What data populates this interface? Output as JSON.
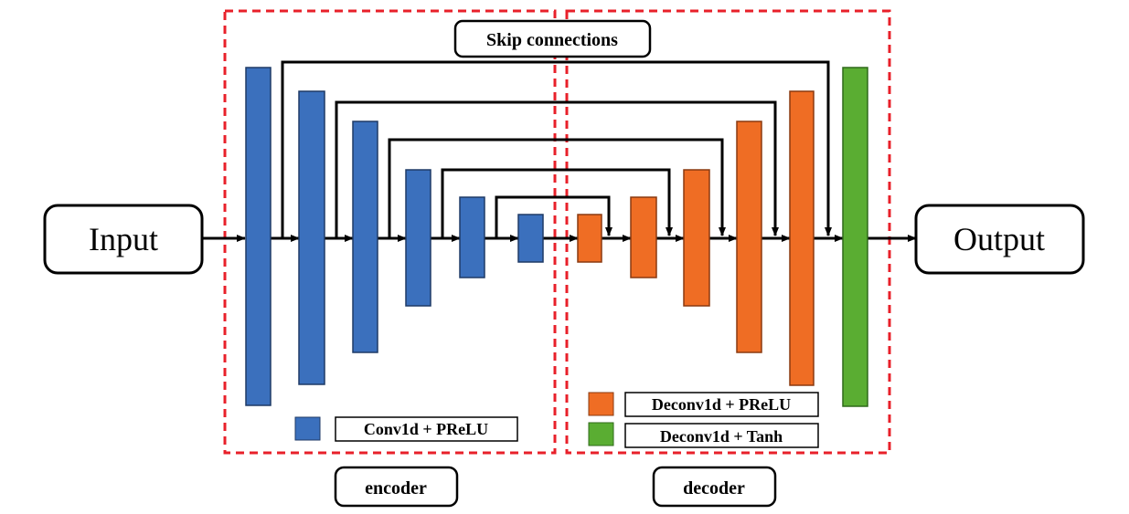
{
  "labels": {
    "input": "Input",
    "output": "Output",
    "skip": "Skip connections",
    "encoder": "encoder",
    "decoder": "decoder"
  },
  "legend": {
    "encoder_item": {
      "label": "Conv1d + PReLU",
      "color": "#3b70bd"
    },
    "decoder_item": {
      "label": "Deconv1d + PReLU",
      "color": "#ef6d24"
    },
    "output_item": {
      "label": "Deconv1d + Tanh",
      "color": "#5aad32"
    }
  },
  "colors": {
    "encoder_block": "#3b70bd",
    "decoder_block": "#ef6d24",
    "output_block": "#5aad32",
    "block_border": "#1f3a66",
    "dashed_region": "#e8202a",
    "arrow": "#000000"
  }
}
